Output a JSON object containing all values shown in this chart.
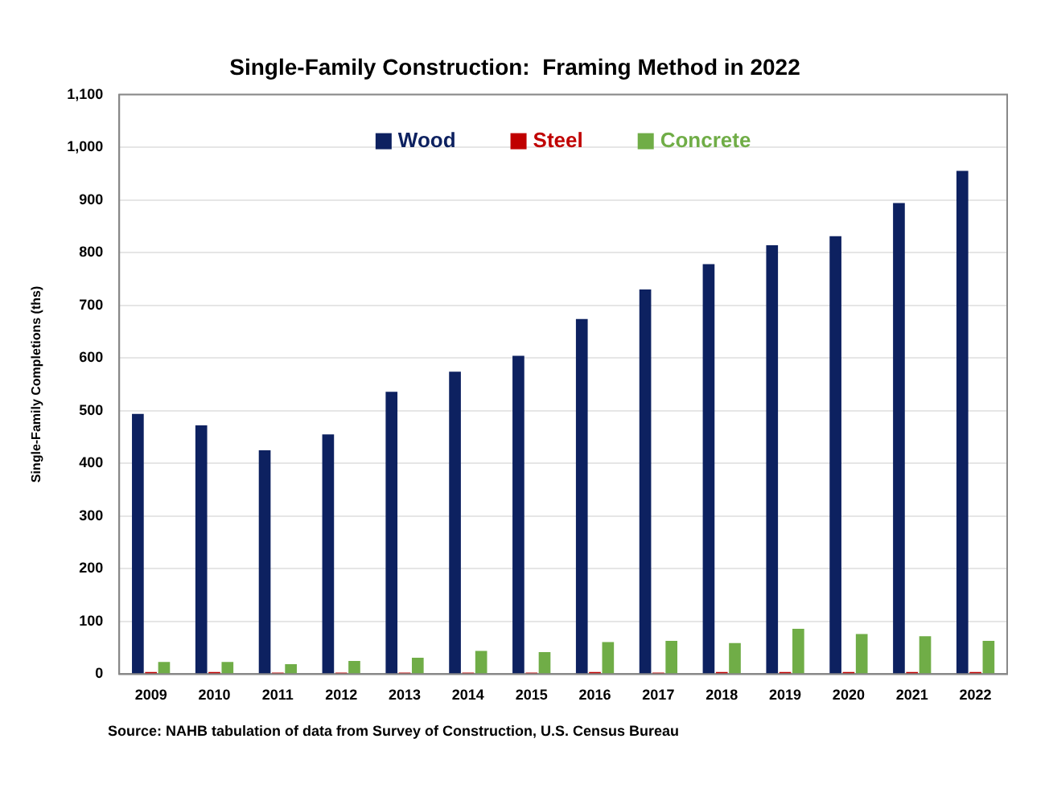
{
  "chart_data": {
    "type": "bar",
    "title": "Single-Family Construction:  Framing Method in 2022",
    "ylabel": "Single-Family Completions (ths)",
    "categories": [
      "2009",
      "2010",
      "2011",
      "2012",
      "2013",
      "2014",
      "2015",
      "2016",
      "2017",
      "2018",
      "2019",
      "2020",
      "2021",
      "2022"
    ],
    "series": [
      {
        "name": "Wood",
        "color": "#0d2160",
        "values": [
          494,
          472,
          425,
          455,
          536,
          574,
          604,
          674,
          730,
          778,
          814,
          831,
          894,
          955
        ]
      },
      {
        "name": "Steel",
        "color": "#c00000",
        "values": [
          4,
          4,
          3,
          3,
          3,
          3,
          3,
          4,
          3,
          4,
          4,
          4,
          4,
          4
        ]
      },
      {
        "name": "Concrete",
        "color": "#70ad47",
        "values": [
          23,
          23,
          19,
          25,
          31,
          44,
          42,
          61,
          63,
          59,
          86,
          76,
          72,
          63
        ]
      }
    ],
    "ylim": [
      0,
      1100
    ],
    "yticks": [
      0,
      100,
      200,
      300,
      400,
      500,
      600,
      700,
      800,
      900,
      {
        "value": 1000,
        "label": "1,000"
      },
      {
        "value": 1100,
        "label": "1,100"
      }
    ],
    "grid": "y",
    "legend": "top",
    "annotations": [
      "Source: NAHB tabulation of data from Survey of Construction, U.S. Census Bureau"
    ]
  }
}
